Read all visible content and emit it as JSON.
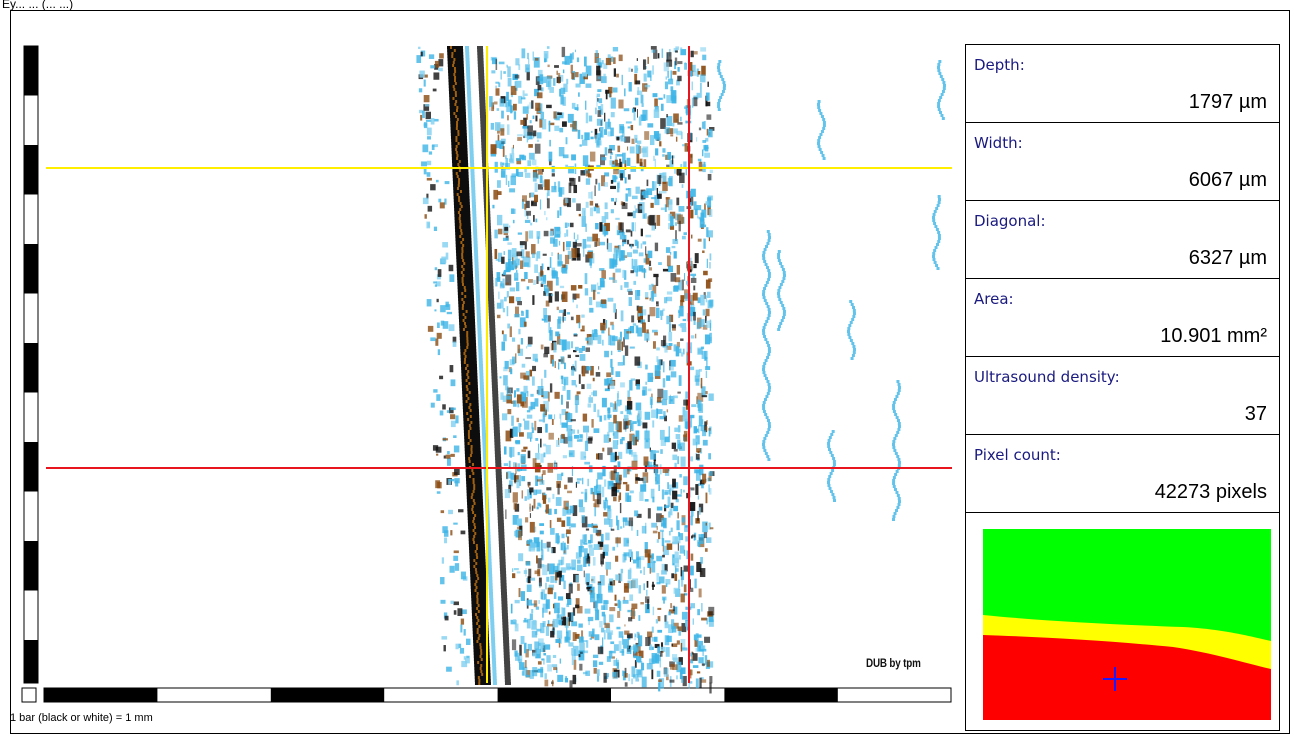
{
  "window": {
    "title_strip": "Ey... ... (... ...)"
  },
  "scan": {
    "watermark": "DUB by tpm",
    "caption": "1 bar (black or white) = 1 mm",
    "colors": {
      "yellow_marker": "#ffee00",
      "red_marker": "#e8141e",
      "echo_cyan": "#3cb4e6",
      "echo_dark": "#111111",
      "echo_brown": "#8a4a10"
    }
  },
  "measurements": [
    {
      "label": "Depth:",
      "value": "1797 µm"
    },
    {
      "label": "Width:",
      "value": "6067 µm"
    },
    {
      "label": "Diagonal:",
      "value": "6327 µm"
    },
    {
      "label": "Area:",
      "value": "10.901 mm²"
    },
    {
      "label": "Ultrasound density:",
      "value": "37"
    },
    {
      "label": "Pixel count:",
      "value": "42273 pixels"
    }
  ],
  "minimap": {
    "colors": {
      "top": "#00ff00",
      "middle": "#ffff00",
      "bottom": "#ff0000",
      "cursor": "#1a1aff"
    },
    "cursor_icon": "crosshair-icon"
  }
}
